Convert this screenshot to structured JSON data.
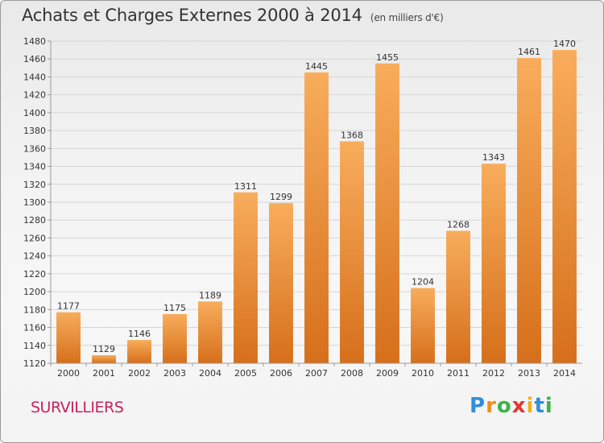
{
  "chart_data": {
    "type": "bar",
    "title": "Achats et Charges Externes 2000 à 2014",
    "subtitle": "(en milliers d'€)",
    "categories": [
      "2000",
      "2001",
      "2002",
      "2003",
      "2004",
      "2005",
      "2006",
      "2007",
      "2008",
      "2009",
      "2010",
      "2011",
      "2012",
      "2013",
      "2014"
    ],
    "values": [
      1177,
      1129,
      1146,
      1175,
      1189,
      1311,
      1299,
      1445,
      1368,
      1455,
      1204,
      1268,
      1343,
      1461,
      1470
    ],
    "ylim": [
      1120,
      1480
    ],
    "yticks": [
      1120,
      1140,
      1160,
      1180,
      1200,
      1220,
      1240,
      1260,
      1280,
      1300,
      1320,
      1340,
      1360,
      1380,
      1400,
      1420,
      1440,
      1460,
      1480
    ],
    "grid": true,
    "colors": {
      "bar_light": "#f7ab5a",
      "bar_dark": "#d9701c",
      "grid": "#d6d6d6"
    }
  },
  "place_name": "SURVILLIERS",
  "logo": {
    "letters": [
      "P",
      "r",
      "o",
      "x",
      "i",
      "t",
      "i"
    ],
    "colors": [
      "#2e8fd8",
      "#f28c1c",
      "#3cb34a",
      "#e2372f",
      "#f2b01c",
      "#2e8fd8",
      "#3cb34a"
    ]
  }
}
